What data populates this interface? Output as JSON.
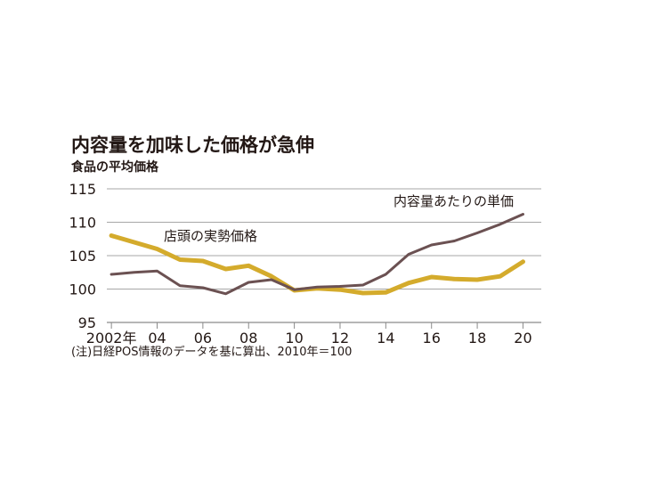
{
  "chart_data": {
    "type": "line",
    "title": "内容量を加味した価格が急伸",
    "subtitle": "食品の平均価格",
    "x": [
      2002,
      2003,
      2004,
      2005,
      2006,
      2007,
      2008,
      2009,
      2010,
      2011,
      2012,
      2013,
      2014,
      2015,
      2016,
      2017,
      2018,
      2019,
      2020
    ],
    "x_tick_values": [
      2002,
      2004,
      2006,
      2008,
      2010,
      2012,
      2014,
      2016,
      2018,
      2020
    ],
    "x_tick_labels": [
      "2002年",
      "04",
      "06",
      "08",
      "10",
      "12",
      "14",
      "16",
      "18",
      "20"
    ],
    "y_ticks": [
      95,
      100,
      105,
      110,
      115
    ],
    "ylim": [
      95,
      115
    ],
    "grid": true,
    "series": [
      {
        "name": "店頭の実勢価格",
        "color": "#d4ab2c",
        "values": [
          108.0,
          107.0,
          106.0,
          104.4,
          104.2,
          103.0,
          103.5,
          101.9,
          99.8,
          100.1,
          99.9,
          99.4,
          99.5,
          100.9,
          101.8,
          101.5,
          101.4,
          101.9,
          104.1
        ]
      },
      {
        "name": "内容量あたりの単価",
        "color": "#6b5152",
        "values": [
          102.2,
          102.5,
          102.7,
          100.5,
          100.2,
          99.3,
          101.0,
          101.4,
          99.9,
          100.3,
          100.4,
          100.6,
          102.2,
          105.2,
          106.6,
          107.2,
          108.4,
          109.7,
          111.2
        ]
      }
    ],
    "note": "(注)日経POS情報のデータを基に算出、2010年＝100"
  }
}
